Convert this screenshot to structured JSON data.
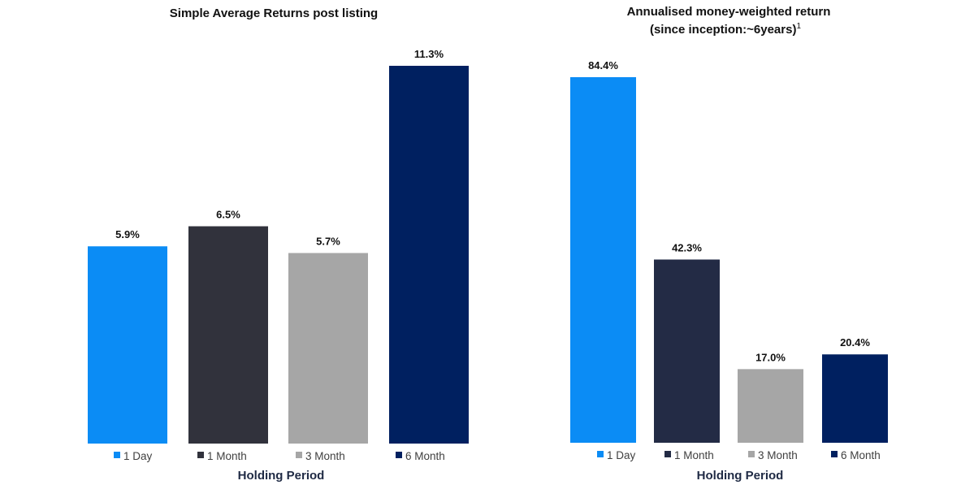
{
  "chart_data": [
    {
      "type": "bar",
      "title": "Simple Average Returns post listing",
      "xlabel": "Holding Period",
      "ylabel": "",
      "categories": [
        "1 Day",
        "1 Month",
        "3 Month",
        "6 Month"
      ],
      "values": [
        5.9,
        6.5,
        5.7,
        11.3
      ],
      "data_labels": [
        "5.9%",
        "6.5%",
        "5.7%",
        "11.3%"
      ],
      "colors": [
        "#0b8cf5",
        "#31323c",
        "#a6a6a6",
        "#002060"
      ],
      "ylim": [
        0,
        11.3
      ],
      "grid": false,
      "legend_position": "bottom"
    },
    {
      "type": "bar",
      "title": "Annualised money-weighted return",
      "subtitle": "(since inception:~6years)",
      "subtitle_superscript": "1",
      "xlabel": "Holding Period",
      "ylabel": "",
      "categories": [
        "1 Day",
        "1 Month",
        "3 Month",
        "6 Month"
      ],
      "values": [
        84.4,
        42.3,
        17.0,
        20.4
      ],
      "data_labels": [
        "84.4%",
        "42.3%",
        "17.0%",
        "20.4%"
      ],
      "colors": [
        "#0b8cf5",
        "#232b45",
        "#a6a6a6",
        "#002060"
      ],
      "ylim": [
        0,
        84.4
      ],
      "grid": false,
      "legend_position": "bottom"
    }
  ]
}
